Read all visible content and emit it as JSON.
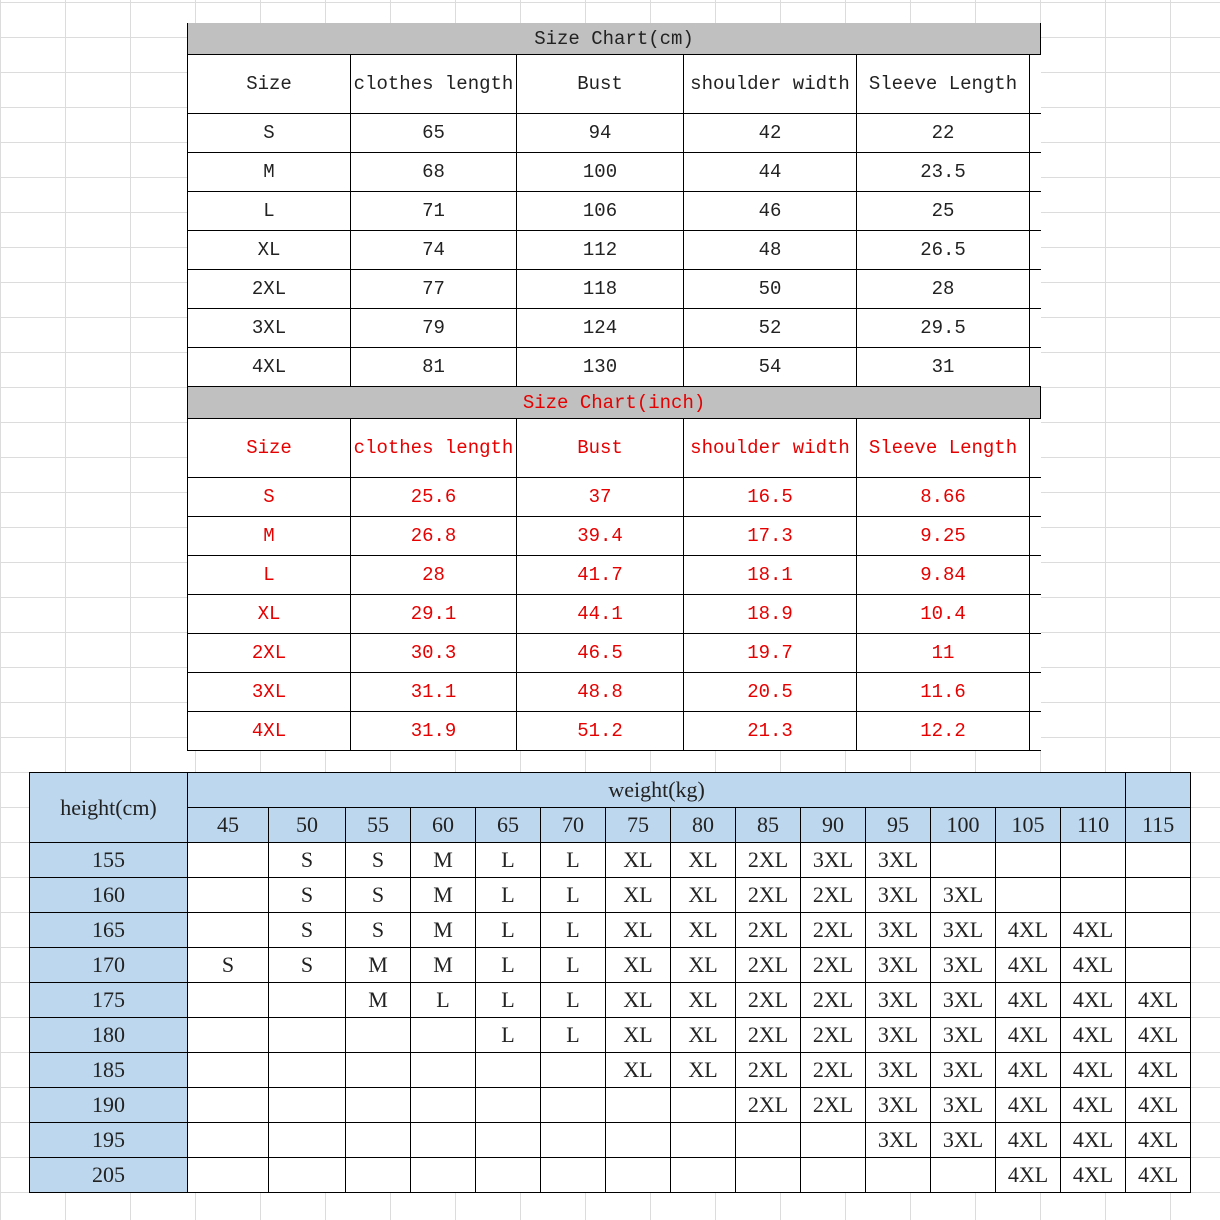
{
  "cm_chart": {
    "title": "Size Chart(cm)",
    "headers": [
      "Size",
      "clothes length",
      "Bust",
      "shoulder width",
      "Sleeve Length"
    ],
    "rows": [
      [
        "S",
        "65",
        "94",
        "42",
        "22"
      ],
      [
        "M",
        "68",
        "100",
        "44",
        "23.5"
      ],
      [
        "L",
        "71",
        "106",
        "46",
        "25"
      ],
      [
        "XL",
        "74",
        "112",
        "48",
        "26.5"
      ],
      [
        "2XL",
        "77",
        "118",
        "50",
        "28"
      ],
      [
        "3XL",
        "79",
        "124",
        "52",
        "29.5"
      ],
      [
        "4XL",
        "81",
        "130",
        "54",
        "31"
      ]
    ]
  },
  "inch_chart": {
    "title": "Size Chart(inch)",
    "text_color": "#e60000",
    "headers": [
      "Size",
      "clothes length",
      "Bust",
      "shoulder width",
      "Sleeve Length"
    ],
    "rows": [
      [
        "S",
        "25.6",
        "37",
        "16.5",
        "8.66"
      ],
      [
        "M",
        "26.8",
        "39.4",
        "17.3",
        "9.25"
      ],
      [
        "L",
        "28",
        "41.7",
        "18.1",
        "9.84"
      ],
      [
        "XL",
        "29.1",
        "44.1",
        "18.9",
        "10.4"
      ],
      [
        "2XL",
        "30.3",
        "46.5",
        "19.7",
        "11"
      ],
      [
        "3XL",
        "31.1",
        "48.8",
        "20.5",
        "11.6"
      ],
      [
        "4XL",
        "31.9",
        "51.2",
        "21.3",
        "12.2"
      ]
    ]
  },
  "fit_chart": {
    "row_header": "height(cm)",
    "col_header": "weight(kg)",
    "header_color": "#bdd7ee",
    "weights": [
      "45",
      "50",
      "55",
      "60",
      "65",
      "70",
      "75",
      "80",
      "85",
      "90",
      "95",
      "100",
      "105",
      "110",
      "115"
    ],
    "rows": [
      {
        "height": "155",
        "sizes": [
          "",
          "S",
          "S",
          "M",
          "L",
          "L",
          "XL",
          "XL",
          "2XL",
          "3XL",
          "3XL",
          "",
          "",
          "",
          ""
        ]
      },
      {
        "height": "160",
        "sizes": [
          "",
          "S",
          "S",
          "M",
          "L",
          "L",
          "XL",
          "XL",
          "2XL",
          "2XL",
          "3XL",
          "3XL",
          "",
          "",
          ""
        ]
      },
      {
        "height": "165",
        "sizes": [
          "",
          "S",
          "S",
          "M",
          "L",
          "L",
          "XL",
          "XL",
          "2XL",
          "2XL",
          "3XL",
          "3XL",
          "4XL",
          "4XL",
          ""
        ]
      },
      {
        "height": "170",
        "sizes": [
          "S",
          "S",
          "M",
          "M",
          "L",
          "L",
          "XL",
          "XL",
          "2XL",
          "2XL",
          "3XL",
          "3XL",
          "4XL",
          "4XL",
          ""
        ]
      },
      {
        "height": "175",
        "sizes": [
          "",
          "",
          "M",
          "L",
          "L",
          "L",
          "XL",
          "XL",
          "2XL",
          "2XL",
          "3XL",
          "3XL",
          "4XL",
          "4XL",
          "4XL"
        ]
      },
      {
        "height": "180",
        "sizes": [
          "",
          "",
          "",
          "",
          "L",
          "L",
          "XL",
          "XL",
          "2XL",
          "2XL",
          "3XL",
          "3XL",
          "4XL",
          "4XL",
          "4XL"
        ]
      },
      {
        "height": "185",
        "sizes": [
          "",
          "",
          "",
          "",
          "",
          "",
          "XL",
          "XL",
          "2XL",
          "2XL",
          "3XL",
          "3XL",
          "4XL",
          "4XL",
          "4XL"
        ]
      },
      {
        "height": "190",
        "sizes": [
          "",
          "",
          "",
          "",
          "",
          "",
          "",
          "",
          "2XL",
          "2XL",
          "3XL",
          "3XL",
          "4XL",
          "4XL",
          "4XL"
        ]
      },
      {
        "height": "195",
        "sizes": [
          "",
          "",
          "",
          "",
          "",
          "",
          "",
          "",
          "",
          "",
          "3XL",
          "3XL",
          "4XL",
          "4XL",
          "4XL"
        ]
      },
      {
        "height": "205",
        "sizes": [
          "",
          "",
          "",
          "",
          "",
          "",
          "",
          "",
          "",
          "",
          "",
          "",
          "4XL",
          "4XL",
          "4XL"
        ]
      }
    ]
  }
}
